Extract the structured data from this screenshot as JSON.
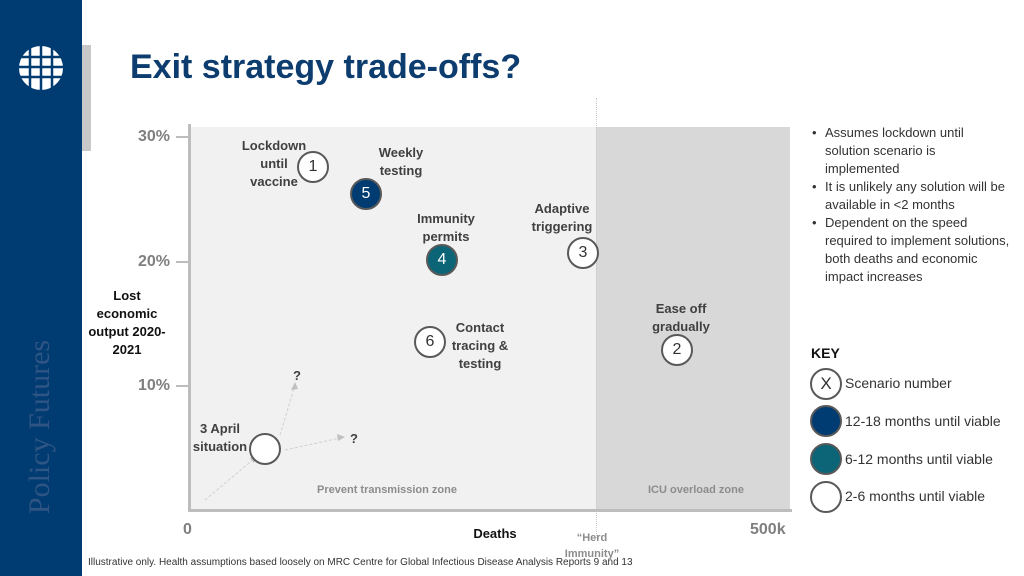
{
  "brand": {
    "name": "Policy Futures",
    "logo": "woven-circle-logo"
  },
  "title": "Exit strategy trade-offs?",
  "axes": {
    "y_label": "Lost economic output 2020-2021",
    "y_ticks": [
      "30%",
      "20%",
      "10%"
    ],
    "x_label": "Deaths",
    "x_min": "0",
    "x_max": "500k",
    "herd": "“Herd Immunity”"
  },
  "zones": {
    "left": "Prevent transmission zone",
    "right": "ICU overload zone"
  },
  "scenarios": [
    {
      "num": "1",
      "label": "Lockdown until vaccine",
      "viability": "2-6"
    },
    {
      "num": "2",
      "label": "Ease off gradually",
      "viability": "2-6"
    },
    {
      "num": "3",
      "label": "Adaptive triggering",
      "viability": "2-6"
    },
    {
      "num": "4",
      "label": "Immunity permits",
      "viability": "6-12"
    },
    {
      "num": "5",
      "label": "Weekly testing",
      "viability": "12-18"
    },
    {
      "num": "6",
      "label": "Contact tracing & testing",
      "viability": "2-6"
    }
  ],
  "current": {
    "label": "3 April situation",
    "q1": "?",
    "q2": "?"
  },
  "notes": [
    "Assumes lockdown until solution scenario is implemented",
    "It is unlikely any solution will be available in <2 months",
    "Dependent on the speed required to implement solutions, both deaths and economic impact increases"
  ],
  "key": {
    "title": "KEY",
    "symbol": "X",
    "items": [
      "Scenario number",
      "12-18 months until viable",
      "6-12 months until viable",
      "2-6 months until viable"
    ]
  },
  "footnote": "Illustrative only. Health assumptions based loosely on MRC Centre for Global Infectious Disease Analysis Reports 9 and 13",
  "colors": {
    "navy": "#003c71",
    "teal": "#0b6577",
    "zone_light": "#f1f1f1",
    "zone_dark": "#d8d8d8"
  }
}
